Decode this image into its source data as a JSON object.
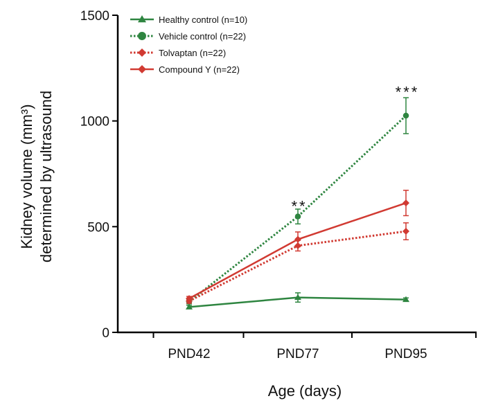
{
  "chart_data": {
    "type": "line",
    "title": "",
    "xlabel": "Age (days)",
    "ylabel_lines": [
      "Kidney volume (mm³)",
      "determined by ultrasound"
    ],
    "categories": [
      "PND42",
      "PND77",
      "PND95"
    ],
    "ylim": [
      0,
      1500
    ],
    "yticks": [
      0,
      500,
      1000,
      1500
    ],
    "grid": false,
    "legend_position": "top-left",
    "series": [
      {
        "name": "Healthy control (n=10)",
        "color": "#2e8540",
        "line_style": "solid",
        "marker": "triangle",
        "values": [
          120,
          165,
          155
        ],
        "errors": [
          8,
          22,
          8
        ]
      },
      {
        "name": "Vehicle control (n=22)",
        "color": "#2e8540",
        "line_style": "dotted",
        "marker": "circle",
        "values": [
          145,
          548,
          1025
        ],
        "errors": [
          10,
          35,
          85
        ]
      },
      {
        "name": "Tolvaptan (n=22)",
        "color": "#d13a32",
        "line_style": "dotted",
        "marker": "diamond",
        "values": [
          148,
          410,
          478
        ],
        "errors": [
          10,
          25,
          40
        ]
      },
      {
        "name": "Compound Y (n=22)",
        "color": "#d13a32",
        "line_style": "solid",
        "marker": "diamond",
        "values": [
          160,
          440,
          612
        ],
        "errors": [
          10,
          35,
          60
        ]
      }
    ],
    "annotations": [
      {
        "category": "PND77",
        "value": 605,
        "text": "**"
      },
      {
        "category": "PND95",
        "value": 1145,
        "text": "***"
      }
    ]
  }
}
